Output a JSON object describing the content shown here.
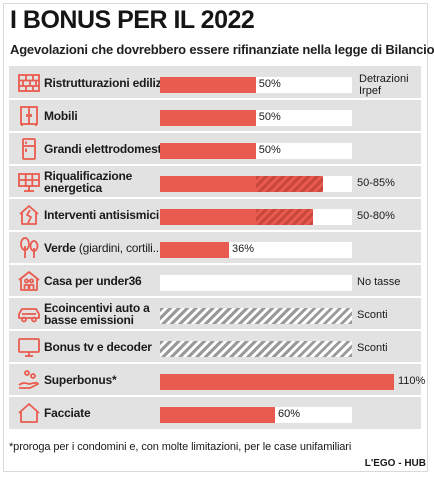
{
  "header": {
    "title": "I BONUS PER IL 2022",
    "subtitle": "Agevolazioni che dovrebbero essere rifinanziate nella legge di Bilancio"
  },
  "note_right": "Detrazioni Irpef",
  "footnote": "*proroga per i condomini e, con molte limitazioni, per le case unifamiliari",
  "credit": "L'EGO - HUB",
  "colors": {
    "bar": "#ea5b4f",
    "bar_hatch": "#c9473d",
    "grey_hatch": "#9a9a9a",
    "panel": "#e2e2e2"
  },
  "chart_data": {
    "type": "bar",
    "orientation": "horizontal",
    "unit": "%",
    "xlim": [
      0,
      110
    ],
    "categories": [
      "Ristrutturazioni edilizie",
      "Mobili",
      "Grandi elettrodomestici",
      "Riqualificazione energetica",
      "Interventi antisismici",
      "Verde (giardini, cortili...)",
      "Casa per under36",
      "Ecoincentivi auto a basse emissioni",
      "Bonus tv e decoder",
      "Superbonus*",
      "Facciate"
    ],
    "rows": [
      {
        "label": "Ristrutturazioni edilizie",
        "label_bold": "Ristrutturazioni edilizie",
        "label_rest": "",
        "icon": "brick-wall-icon",
        "kind": "value",
        "value": 50,
        "value_label": "50%"
      },
      {
        "label": "Mobili",
        "label_bold": "Mobili",
        "label_rest": "",
        "icon": "wardrobe-icon",
        "kind": "value",
        "value": 50,
        "value_label": "50%"
      },
      {
        "label": "Grandi elettrodomestici",
        "label_bold": "Grandi elettrodomestici",
        "label_rest": "",
        "icon": "fridge-icon",
        "kind": "value",
        "value": 50,
        "value_label": "50%"
      },
      {
        "label": "Riqualificazione energetica",
        "label_bold": "Riqualificazione energetica",
        "label_rest": "",
        "icon": "solar-panel-icon",
        "kind": "range",
        "value": 50,
        "value_max": 85,
        "value_label": "50-85%"
      },
      {
        "label": "Interventi antisismici",
        "label_bold": "Interventi antisismici",
        "label_rest": "",
        "icon": "earthquake-house-icon",
        "kind": "range",
        "value": 50,
        "value_max": 80,
        "value_label": "50-80%"
      },
      {
        "label": "Verde (giardini, cortili...)",
        "label_bold": "Verde",
        "label_rest": " (giardini, cortili...)",
        "icon": "tree-icon",
        "kind": "value",
        "value": 36,
        "value_label": "36%"
      },
      {
        "label": "Casa per under36",
        "label_bold": "Casa per under36",
        "label_rest": "",
        "icon": "house-people-icon",
        "kind": "none",
        "value_label": "No tasse"
      },
      {
        "label": "Ecoincentivi auto a basse emissioni",
        "label_bold": "Ecoincentivi auto a basse emissioni",
        "label_rest": "",
        "icon": "car-icon",
        "kind": "discount",
        "value_label": "Sconti"
      },
      {
        "label": "Bonus tv e decoder",
        "label_bold": "Bonus tv e decoder",
        "label_rest": "",
        "icon": "tv-icon",
        "kind": "discount",
        "value_label": "Sconti"
      },
      {
        "label": "Superbonus*",
        "label_bold": "Superbonus*",
        "label_rest": "",
        "icon": "hand-coins-icon",
        "kind": "value",
        "value": 110,
        "value_label": "110%"
      },
      {
        "label": "Facciate",
        "label_bold": "Facciate",
        "label_rest": "",
        "icon": "house-facade-icon",
        "kind": "value",
        "value": 60,
        "value_label": "60%"
      }
    ]
  }
}
